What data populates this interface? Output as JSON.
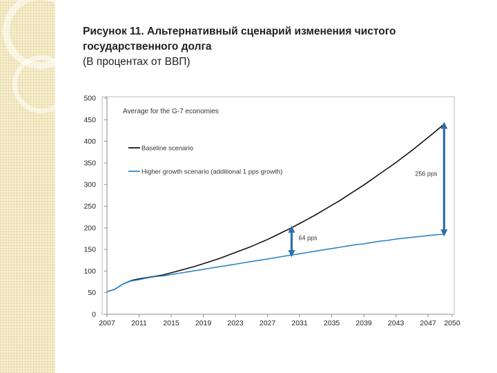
{
  "slide": {
    "title": "Рисунок 11. Альтернативный сценарий изменения чистого государственного долга",
    "title_line1": "Рисунок 11. Альтернативный сценарий изменения чистого",
    "title_line2": "государственного долга",
    "subtitle": "(В процентах от ВВП)"
  },
  "chart_data": {
    "type": "line",
    "title": "Average for the G-7 economies",
    "xlabel": "",
    "ylabel": "",
    "xlim": [
      2007,
      2050
    ],
    "ylim": [
      0,
      500
    ],
    "x_ticks": [
      "2007",
      "2011",
      "2015",
      "2019",
      "2023",
      "2027",
      "2031",
      "2035",
      "2039",
      "2043",
      "2047",
      "2050"
    ],
    "y_ticks": [
      "0",
      "50",
      "100",
      "150",
      "200",
      "250",
      "300",
      "350",
      "400",
      "450",
      "500"
    ],
    "grid": false,
    "legend_position": "top-left",
    "series": [
      {
        "name": "Baseline scenario",
        "color": "#111111",
        "x": [
          2007,
          2008,
          2009,
          2010,
          2011,
          2012,
          2013,
          2014,
          2015,
          2016,
          2017,
          2018,
          2019,
          2020,
          2021,
          2022,
          2023,
          2024,
          2025,
          2026,
          2027,
          2028,
          2029,
          2030,
          2031,
          2032,
          2033,
          2034,
          2035,
          2036,
          2037,
          2038,
          2039,
          2040,
          2041,
          2042,
          2043,
          2044,
          2045,
          2046,
          2047,
          2048,
          2049
        ],
        "values": [
          52,
          58,
          70,
          78,
          82,
          85,
          88,
          91,
          96,
          101,
          106,
          111,
          117,
          123,
          129,
          136,
          143,
          150,
          157,
          165,
          173,
          182,
          191,
          200,
          210,
          220,
          230,
          241,
          252,
          263,
          275,
          287,
          299,
          312,
          325,
          338,
          351,
          365,
          379,
          394,
          409,
          424,
          440
        ]
      },
      {
        "name": "Higher growth scenario (additional 1 pps growth)",
        "color": "#2e86c8",
        "x": [
          2007,
          2008,
          2009,
          2010,
          2011,
          2012,
          2013,
          2014,
          2015,
          2016,
          2017,
          2018,
          2019,
          2020,
          2021,
          2022,
          2023,
          2024,
          2025,
          2026,
          2027,
          2028,
          2029,
          2030,
          2031,
          2032,
          2033,
          2034,
          2035,
          2036,
          2037,
          2038,
          2039,
          2040,
          2041,
          2042,
          2043,
          2044,
          2045,
          2046,
          2047,
          2048,
          2049
        ],
        "values": [
          52,
          58,
          70,
          77,
          80,
          84,
          87,
          89,
          92,
          95,
          98,
          101,
          104,
          107,
          110,
          113,
          116,
          119,
          122,
          125,
          128,
          131,
          134,
          137,
          140,
          143,
          146,
          149,
          152,
          155,
          158,
          161,
          163,
          166,
          169,
          171,
          174,
          176,
          178,
          180,
          182,
          184,
          185
        ]
      }
    ],
    "annotations": [
      {
        "text": "64 pps",
        "x": 2030,
        "y_from": 137,
        "y_to": 200
      },
      {
        "text": "256 pps",
        "x": 2049,
        "y_from": 185,
        "y_to": 440
      }
    ],
    "annotation_color": "#2e6eaa"
  }
}
